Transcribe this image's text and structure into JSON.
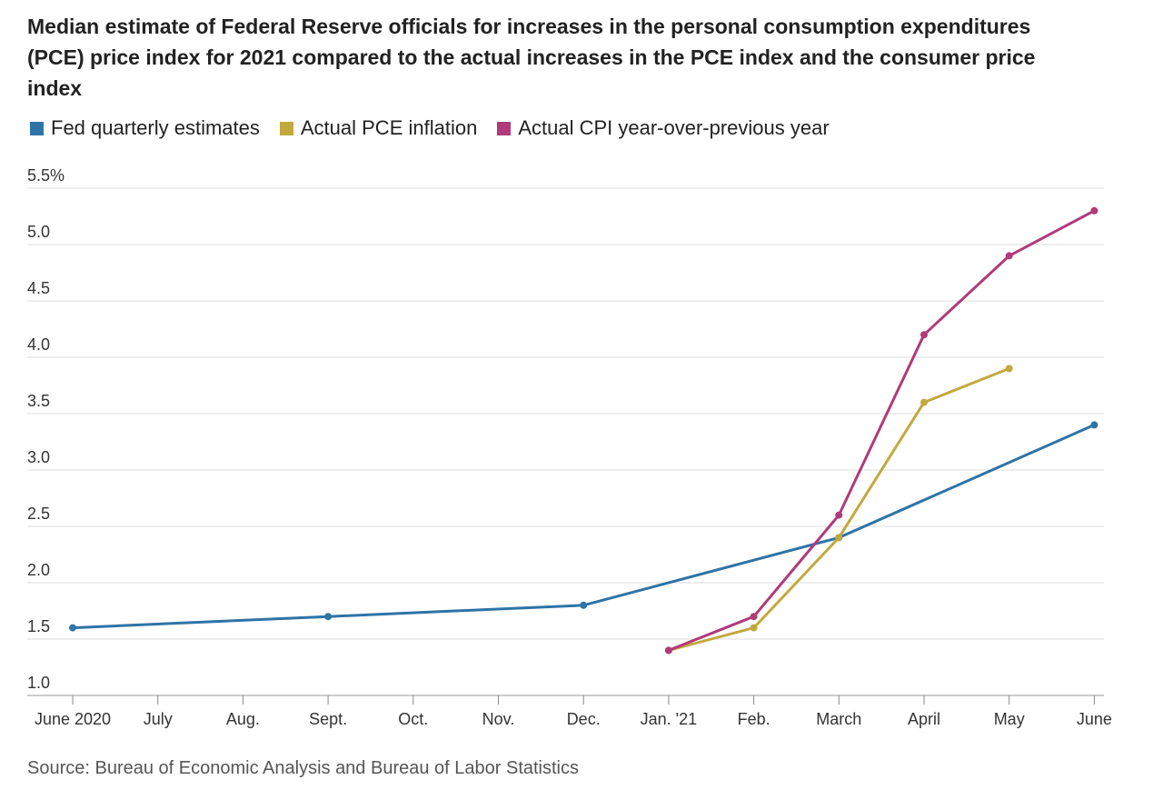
{
  "title": "Median estimate of Federal Reserve officials for increases in the personal consumption expenditures (PCE) price index for 2021 compared to the actual increases in the PCE index and the consumer price index",
  "source": "Source: Bureau of Economic Analysis and Bureau of Labor Statistics",
  "legend": [
    {
      "label": "Fed quarterly estimates",
      "color": "#2e74a6"
    },
    {
      "label": "Actual PCE inflation",
      "color": "#c2a93e"
    },
    {
      "label": "Actual CPI year-over-previous year",
      "color": "#b03a7a"
    }
  ],
  "chart_data": {
    "type": "line",
    "title": "Median estimate of Federal Reserve officials for increases in the personal consumption expenditures (PCE) price index for 2021 compared to the actual increases in the PCE index and the consumer price index",
    "x_categories": [
      "June 2020",
      "July",
      "Aug.",
      "Sept.",
      "Oct.",
      "Nov.",
      "Dec.",
      "Jan. '21",
      "Feb.",
      "March",
      "April",
      "May",
      "June"
    ],
    "y_tick_labels": [
      "1.0",
      "1.5",
      "2.0",
      "2.5",
      "3.0",
      "3.5",
      "4.0",
      "4.5",
      "5.0",
      "5.5%"
    ],
    "y_ticks": [
      1.0,
      1.5,
      2.0,
      2.5,
      3.0,
      3.5,
      4.0,
      4.5,
      5.0,
      5.5
    ],
    "ylim": [
      1.0,
      5.5
    ],
    "grid": true,
    "legend_position": "top-left",
    "series": [
      {
        "name": "Fed quarterly estimates",
        "color": "#2e74a6",
        "points": [
          {
            "x": "June 2020",
            "y": 1.6
          },
          {
            "x": "Sept.",
            "y": 1.7
          },
          {
            "x": "Dec.",
            "y": 1.8
          },
          {
            "x": "March",
            "y": 2.4
          },
          {
            "x": "June",
            "y": 3.4
          }
        ]
      },
      {
        "name": "Actual PCE inflation",
        "color": "#c2a93e",
        "points": [
          {
            "x": "Jan. '21",
            "y": 1.4
          },
          {
            "x": "Feb.",
            "y": 1.6
          },
          {
            "x": "March",
            "y": 2.4
          },
          {
            "x": "April",
            "y": 3.6
          },
          {
            "x": "May",
            "y": 3.9
          }
        ]
      },
      {
        "name": "Actual CPI year-over-previous year",
        "color": "#b03a7a",
        "points": [
          {
            "x": "Jan. '21",
            "y": 1.4
          },
          {
            "x": "Feb.",
            "y": 1.7
          },
          {
            "x": "March",
            "y": 2.6
          },
          {
            "x": "April",
            "y": 4.2
          },
          {
            "x": "May",
            "y": 4.9
          },
          {
            "x": "June",
            "y": 5.3
          }
        ]
      }
    ]
  }
}
